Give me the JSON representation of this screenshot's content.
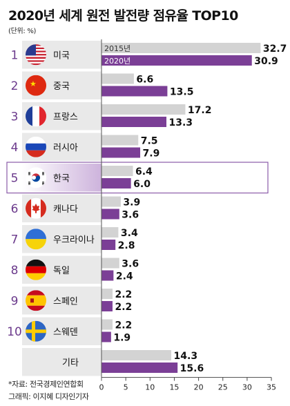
{
  "title": "2020년 세계 원전 발전량 점유율 TOP10",
  "unit_label": "(단위: %)",
  "source": "*자료: 전국경제인연합회",
  "credit": "그래픽: 이지혜 디자인기자",
  "colors": {
    "y2015": "#d3d3d3",
    "y2020": "#7b3f96",
    "rank": "#6b3a8c",
    "grid": "#cccccc",
    "row_bg": "#e9e9e9",
    "highlight_border": "#8a5aa8"
  },
  "chart_data": {
    "type": "bar",
    "orientation": "horizontal",
    "categories": [
      "미국",
      "중국",
      "프랑스",
      "러시아",
      "한국",
      "캐나다",
      "우크라이나",
      "독일",
      "스페인",
      "스웨덴",
      "기타"
    ],
    "ranks": [
      "1",
      "2",
      "3",
      "4",
      "5",
      "6",
      "7",
      "8",
      "9",
      "10",
      ""
    ],
    "flags": [
      "us-flag-icon",
      "china-flag-icon",
      "france-flag-icon",
      "russia-flag-icon",
      "korea-flag-icon",
      "canada-flag-icon",
      "ukraine-flag-icon",
      "germany-flag-icon",
      "spain-flag-icon",
      "sweden-flag-icon",
      ""
    ],
    "series": [
      {
        "name": "2015년",
        "values": [
          32.7,
          6.6,
          17.2,
          7.5,
          6.4,
          3.9,
          3.4,
          3.6,
          2.2,
          2.2,
          14.3
        ]
      },
      {
        "name": "2020년",
        "values": [
          30.9,
          13.5,
          13.3,
          7.9,
          6.0,
          3.6,
          2.8,
          2.4,
          2.2,
          1.9,
          15.6
        ]
      }
    ],
    "value_labels": [
      [
        "32.7",
        "6.6",
        "17.2",
        "7.5",
        "6.4",
        "3.9",
        "3.4",
        "3.6",
        "2.2",
        "2.2",
        "14.3"
      ],
      [
        "30.9",
        "13.5",
        "13.3",
        "7.9",
        "6.0",
        "3.6",
        "2.8",
        "2.4",
        "2.2",
        "1.9",
        "15.6"
      ]
    ],
    "highlight": "한국",
    "xlim": [
      0,
      35
    ],
    "xticks": [
      0,
      5,
      10,
      15,
      20,
      25,
      30,
      35
    ],
    "xtick_labels": [
      "0",
      "5",
      "10",
      "15",
      "20",
      "25",
      "30",
      "35"
    ],
    "legend_placement": "inside-first-bars",
    "grid": false
  }
}
